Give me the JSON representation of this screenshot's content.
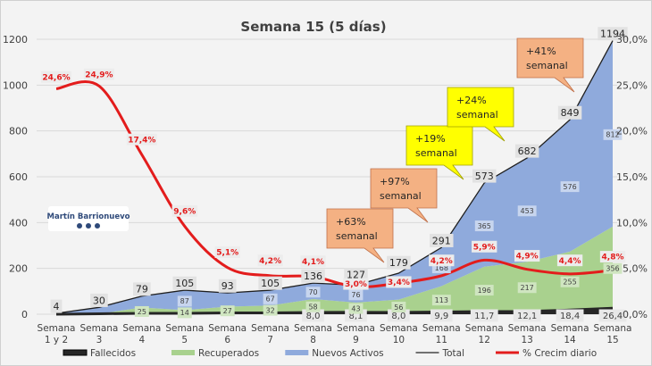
{
  "chart_data": {
    "type": "area",
    "title": "Semana 15 (5 días)",
    "categories": [
      "Semana|1 y 2",
      "Semana|3",
      "Semana|4",
      "Semana|5",
      "Semana|6",
      "Semana|7",
      "Semana|8",
      "Semana|9",
      "Semana|10",
      "Semana|11",
      "Semana|12",
      "Semana|13",
      "Semana|14",
      "Semana|15"
    ],
    "ylim": [
      0,
      1200
    ],
    "yticks": [
      "0",
      "200",
      "400",
      "600",
      "800",
      "1000",
      "1200"
    ],
    "y2lim": [
      0,
      30
    ],
    "y2ticks": [
      "0,0%",
      "5,0%",
      "10,0%",
      "15,0%",
      "20,0%",
      "25,0%",
      "30,0%"
    ],
    "grid": true,
    "legend": "bottom",
    "colors": {
      "fallecidos": "#262626",
      "recuperados": "#a9d18e",
      "activos": "#8faadc",
      "total": "#1f1f1f",
      "crecim": "#e31c1c"
    },
    "series": [
      {
        "name": "Fallecidos",
        "values": [
          0,
          2,
          4,
          4,
          6,
          6,
          8.0,
          8.1,
          8.0,
          9.9,
          11.7,
          12.1,
          18.4,
          26.4
        ],
        "labels": [
          null,
          null,
          null,
          null,
          null,
          null,
          "8,0",
          "8,1",
          "8,0",
          "9,9",
          "11,7",
          "12,1",
          "18,4",
          "26,4"
        ]
      },
      {
        "name": "Recuperados",
        "values": [
          0,
          0,
          25,
          14,
          27,
          32,
          58,
          43,
          56,
          113,
          196,
          217,
          255,
          356
        ],
        "labels": [
          null,
          null,
          "25",
          "14",
          "27",
          "32",
          "58",
          "43",
          "56",
          "113",
          "196",
          "217",
          "255",
          "356"
        ]
      },
      {
        "name": "Nuevos Activos",
        "values": [
          4,
          28,
          50,
          87,
          60,
          67,
          70,
          76,
          115,
          168,
          365,
          453,
          576,
          812
        ],
        "labels": [
          null,
          null,
          null,
          "87",
          null,
          "67",
          "70",
          "76",
          null,
          "168",
          "365",
          "453",
          "576",
          "812"
        ]
      },
      {
        "name": "Total",
        "values": [
          4,
          30,
          79,
          105,
          93,
          105,
          136,
          127,
          179,
          291,
          573,
          682,
          849,
          1194
        ],
        "labels": [
          "4",
          "30",
          "79",
          "105",
          "93",
          "105",
          "136",
          "127",
          "179",
          "291",
          "573",
          "682",
          "849",
          "1194"
        ]
      },
      {
        "name": "% Crecim diario",
        "axis": "right",
        "values": [
          24.6,
          24.9,
          17.4,
          9.6,
          5.1,
          4.2,
          4.1,
          3.0,
          3.4,
          4.2,
          5.9,
          4.9,
          4.4,
          4.8
        ],
        "labels": [
          "24,6%",
          "24,9%",
          "17,4%",
          "9,6%",
          "5,1%",
          "4,2%",
          "4,1%",
          "3,0%",
          "3,4%",
          "4,2%",
          "5,9%",
          "4,9%",
          "4,4%",
          "4,8%"
        ]
      }
    ],
    "annotations": [
      {
        "text": "+63%|semanal",
        "style": "orange",
        "at": 8
      },
      {
        "text": "+97%|semanal",
        "style": "orange",
        "at": 9
      },
      {
        "text": "+19%|semanal",
        "style": "yellow",
        "at": 10
      },
      {
        "text": "+24%|semanal",
        "style": "yellow",
        "at": 11
      },
      {
        "text": "+41%|semanal",
        "style": "orange",
        "at": 13
      }
    ]
  },
  "logo": {
    "text": "Martín Barrionuevo"
  }
}
